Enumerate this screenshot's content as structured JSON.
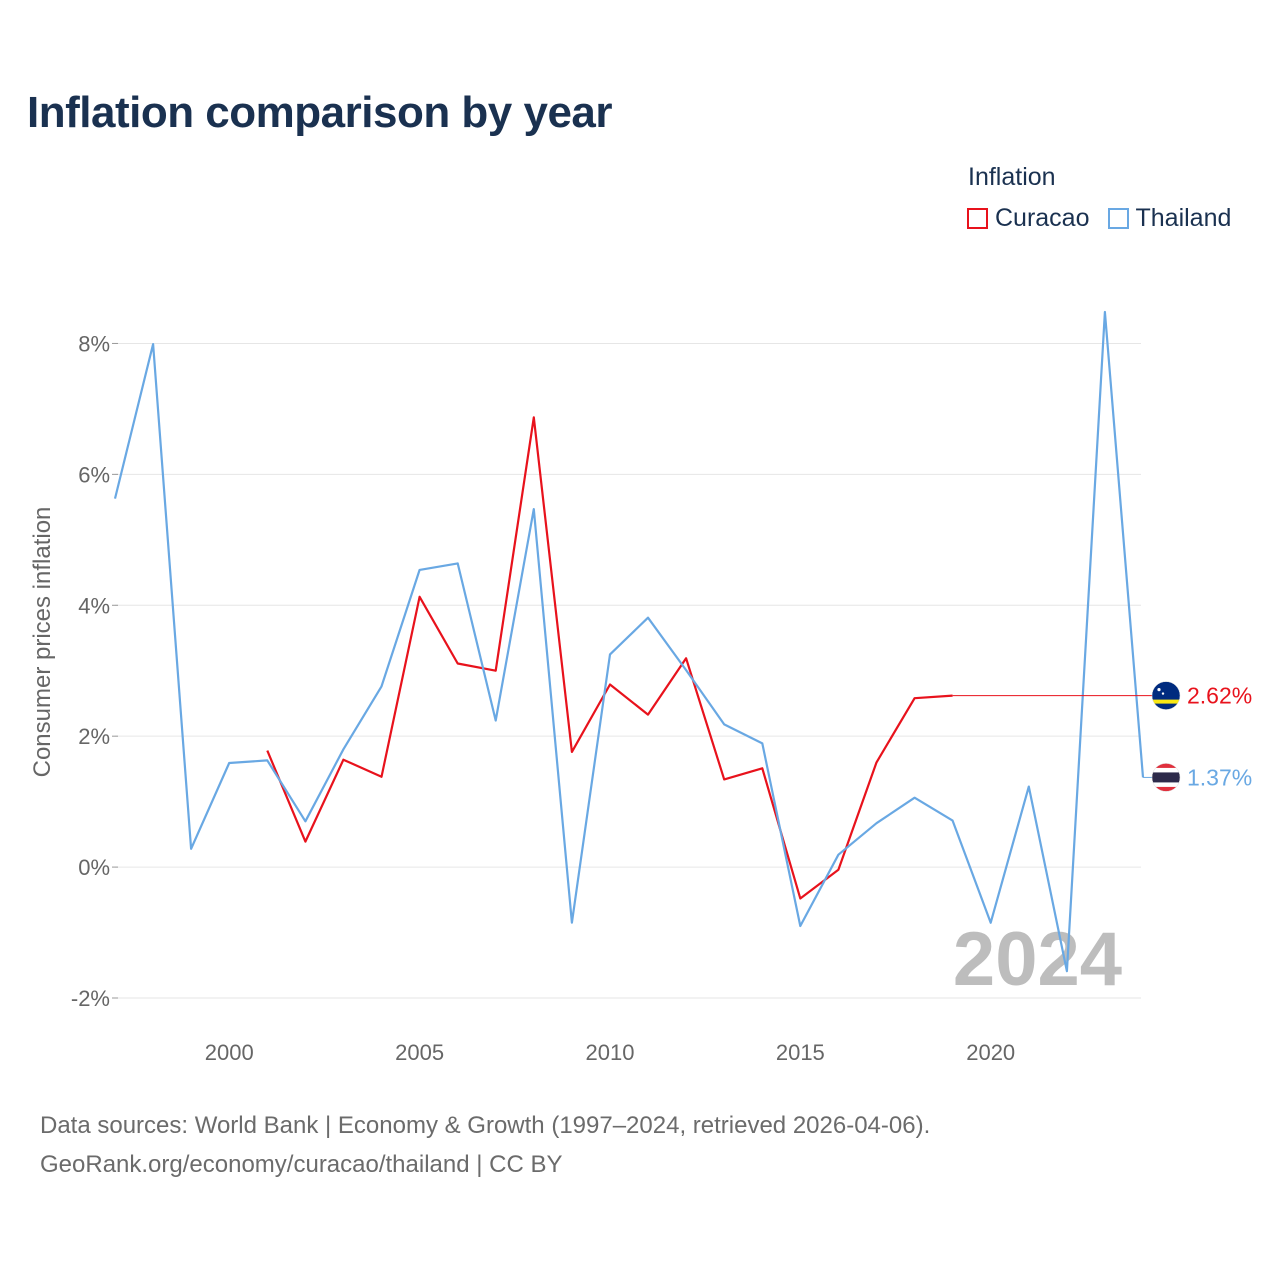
{
  "title": "Inflation comparison by year",
  "legend": {
    "title": "Inflation",
    "items": [
      {
        "label": "Curacao",
        "color": "#e8121c"
      },
      {
        "label": "Thailand",
        "color": "#69a8e3"
      }
    ]
  },
  "source": {
    "line1": "Data sources: World Bank | Economy & Growth (1997–2024, retrieved 2026-04-06).",
    "line2": "GeoRank.org/economy/curacao/thailand | CC BY"
  },
  "chart_data": {
    "type": "line",
    "title": "Inflation comparison by year",
    "xlabel": "",
    "ylabel": "Consumer prices inflation",
    "xlim": [
      1997,
      2024
    ],
    "ylim": [
      -2,
      9
    ],
    "yticks": [
      -2,
      0,
      2,
      4,
      6,
      8
    ],
    "ytick_labels": [
      "-2%",
      "0%",
      "2%",
      "4%",
      "6%",
      "8%"
    ],
    "xticks": [
      2000,
      2005,
      2010,
      2015,
      2020
    ],
    "xtick_labels": [
      "2000",
      "2005",
      "2010",
      "2015",
      "2020"
    ],
    "grid": true,
    "watermark": "2024",
    "series": [
      {
        "name": "Curacao",
        "color": "#e8121c",
        "flag": "curacao-flag-icon",
        "end_label": "2.62%",
        "x": [
          2001,
          2002,
          2003,
          2004,
          2005,
          2006,
          2007,
          2008,
          2009,
          2010,
          2011,
          2012,
          2013,
          2014,
          2015,
          2016,
          2017,
          2018,
          2019
        ],
        "values": [
          1.78,
          0.39,
          1.64,
          1.38,
          4.13,
          3.11,
          3.0,
          6.87,
          1.76,
          2.79,
          2.33,
          3.19,
          1.34,
          1.51,
          -0.48,
          -0.04,
          1.6,
          2.58,
          2.62
        ]
      },
      {
        "name": "Thailand",
        "color": "#69a8e3",
        "flag": "thailand-flag-icon",
        "end_label": "1.37%",
        "x": [
          1997,
          1998,
          1999,
          2000,
          2001,
          2002,
          2003,
          2004,
          2005,
          2006,
          2007,
          2008,
          2009,
          2010,
          2011,
          2012,
          2013,
          2014,
          2015,
          2016,
          2017,
          2018,
          2019,
          2020,
          2021,
          2022,
          2023,
          2024
        ],
        "values": [
          5.63,
          7.99,
          0.28,
          1.59,
          1.63,
          0.7,
          1.8,
          2.76,
          4.54,
          4.64,
          2.24,
          5.47,
          -0.85,
          3.25,
          3.81,
          3.01,
          2.18,
          1.89,
          -0.9,
          0.19,
          0.67,
          1.06,
          0.71,
          -0.85,
          1.23,
          -1.59,
          8.48,
          1.37
        ]
      }
    ]
  }
}
